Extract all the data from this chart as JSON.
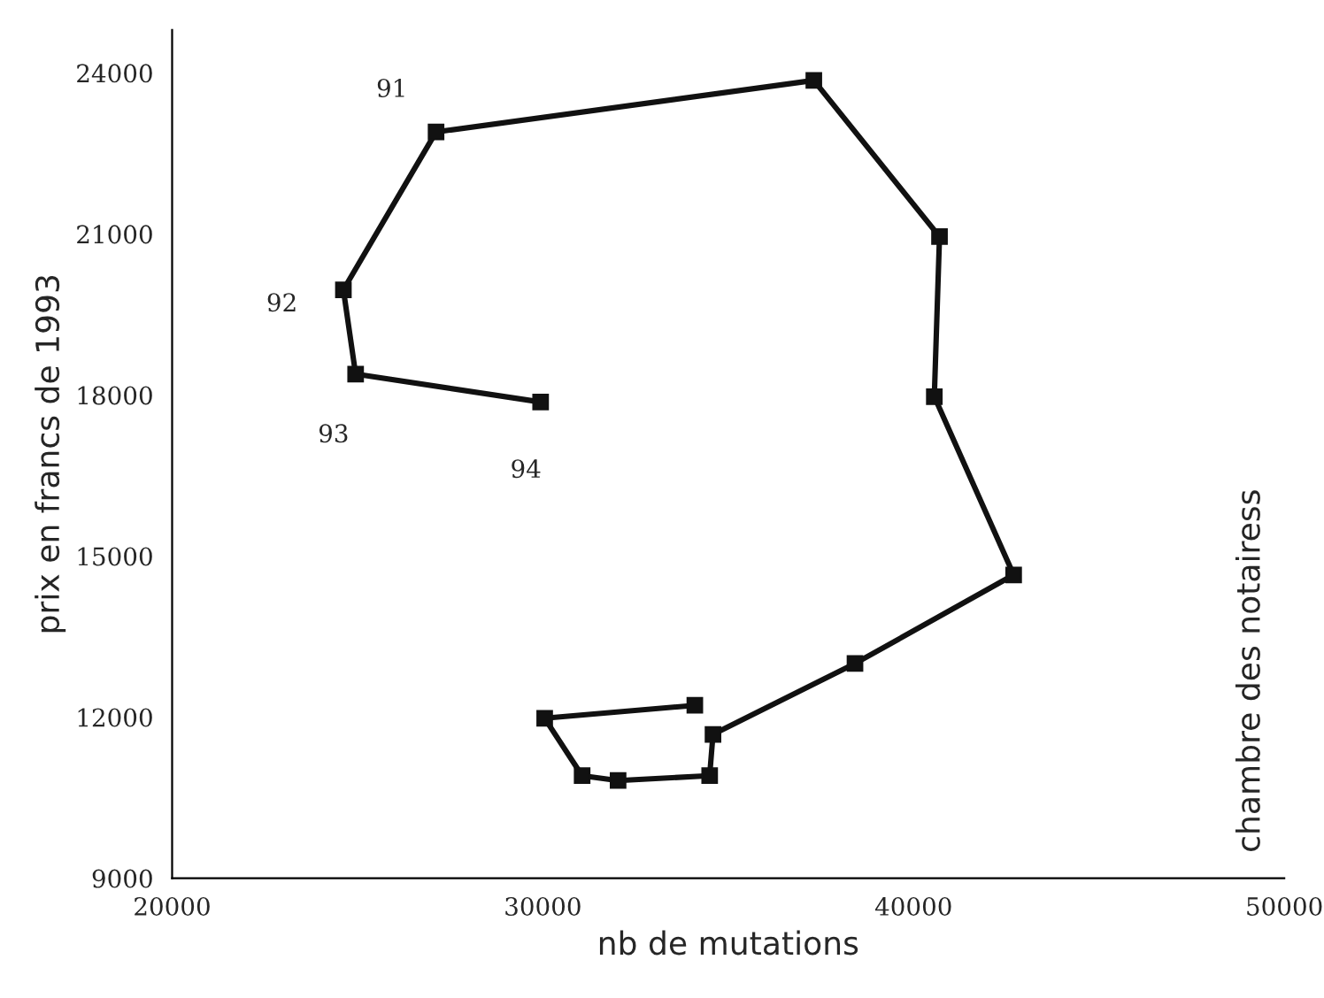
{
  "chart_data": {
    "type": "line",
    "xlabel": "nb de mutations",
    "ylabel": "prix en francs de 1993",
    "x": [
      34100,
      30050,
      31060,
      32030,
      34500,
      34590,
      38420,
      42700,
      40560,
      40700,
      37310,
      27120,
      24620,
      24950,
      29940
    ],
    "series": [
      {
        "color": "#111111",
        "values": [
          12220,
          11980,
          10910,
          10820,
          10910,
          11680,
          13000,
          14650,
          17970,
          20950,
          23860,
          22900,
          19960,
          18390,
          17870
        ]
      }
    ],
    "marker": "square",
    "line_style": "solid",
    "grid": false,
    "legend": false,
    "xlim": [
      20000,
      50000
    ],
    "ylim": [
      9000,
      24800
    ],
    "xticks": [
      20000,
      30000,
      40000,
      50000
    ],
    "yticks": [
      9000,
      12000,
      15000,
      18000,
      21000,
      24000
    ],
    "annotations": [
      {
        "text": "91",
        "x": 27120,
        "y": 22900
      },
      {
        "text": "92",
        "x": 24620,
        "y": 19960
      },
      {
        "text": "93",
        "x": 24950,
        "y": 18390
      },
      {
        "text": "94",
        "x": 29940,
        "y": 17870
      },
      "chambre des notairess"
    ]
  }
}
